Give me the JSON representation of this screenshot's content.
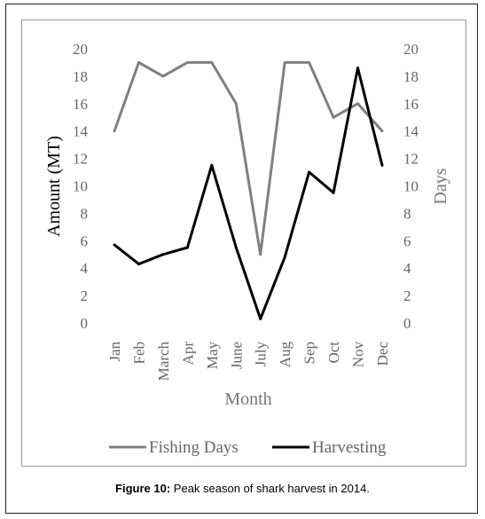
{
  "caption": {
    "label": "Figure 10:",
    "text": "Peak season of shark harvest in 2014."
  },
  "chart_data": {
    "type": "line",
    "title": "",
    "xlabel": "Month",
    "ylabel_left": "Amount (MT)",
    "ylabel_right": "Days",
    "categories": [
      "Jan",
      "Feb",
      "March",
      "Apr",
      "May",
      "June",
      "July",
      "Aug",
      "Sep",
      "Oct",
      "Nov",
      "Dec"
    ],
    "ylim": [
      0,
      20
    ],
    "yticks": [
      "0",
      "2",
      "4",
      "6",
      "8",
      "10",
      "12",
      "14",
      "16",
      "18",
      "20"
    ],
    "y2lim": [
      0,
      20
    ],
    "y2ticks": [
      "0",
      "2",
      "4",
      "6",
      "8",
      "10",
      "12",
      "14",
      "16",
      "18",
      "20"
    ],
    "grid": false,
    "legend_position": "bottom",
    "series": [
      {
        "name": "Fishing Days",
        "axis": "right",
        "color": "#808080",
        "values": [
          14,
          19,
          18,
          19,
          19,
          16,
          5,
          19,
          19,
          15,
          16,
          14
        ]
      },
      {
        "name": "Harvesting",
        "axis": "left",
        "color": "#000000",
        "values": [
          5.7,
          4.3,
          5.0,
          5.5,
          11.5,
          5.5,
          0.3,
          4.8,
          11.0,
          9.5,
          18.6,
          11.5
        ]
      }
    ]
  }
}
